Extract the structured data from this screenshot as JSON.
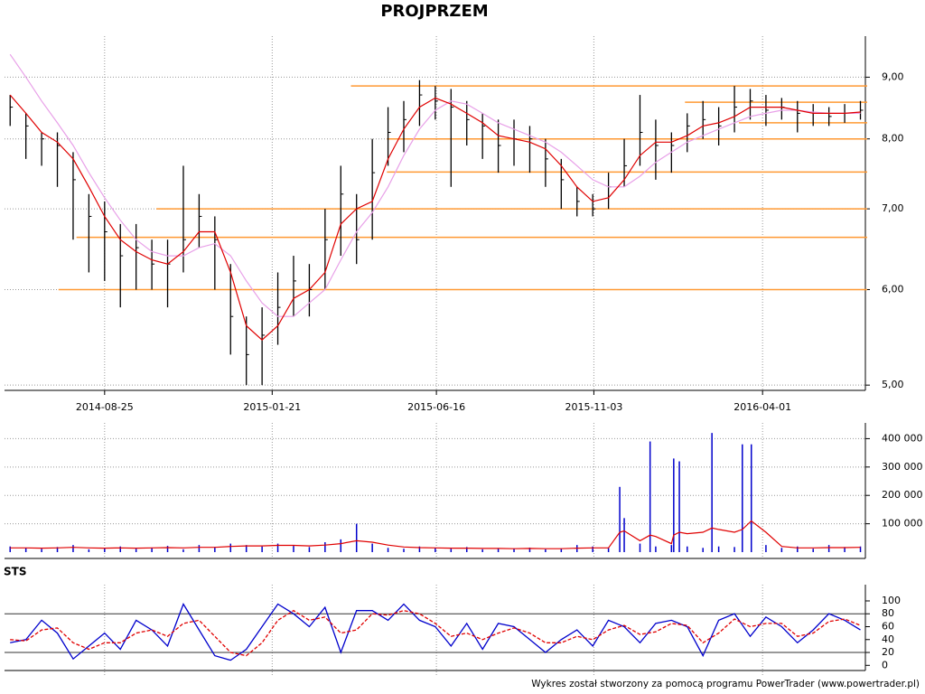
{
  "chart_data": [
    {
      "type": "ohlc",
      "title": "PROJPRZEM",
      "log": true,
      "grid": true,
      "color": "#000000",
      "xlim": [
        "2014-05-28",
        "2016-06-29"
      ],
      "xticks": [
        "2014-08-25",
        "2015-01-21",
        "2015-06-16",
        "2015-11-03",
        "2016-04-01"
      ],
      "ylim": [
        4.95,
        9.6
      ],
      "yticks": [
        {
          "value": 5,
          "label": "5,00"
        },
        {
          "value": 6,
          "label": "6,00"
        },
        {
          "value": 7,
          "label": "7,00"
        },
        {
          "value": 8,
          "label": "8,00"
        },
        {
          "value": 9,
          "label": "9,00"
        }
      ],
      "x": [
        "2014-06-02",
        "2014-06-16",
        "2014-06-30",
        "2014-07-14",
        "2014-07-28",
        "2014-08-11",
        "2014-08-25",
        "2014-09-08",
        "2014-09-22",
        "2014-10-06",
        "2014-10-20",
        "2014-11-03",
        "2014-11-17",
        "2014-12-01",
        "2014-12-15",
        "2014-12-29",
        "2015-01-12",
        "2015-01-26",
        "2015-02-09",
        "2015-02-23",
        "2015-03-09",
        "2015-03-23",
        "2015-04-06",
        "2015-04-20",
        "2015-05-04",
        "2015-05-18",
        "2015-06-01",
        "2015-06-15",
        "2015-06-29",
        "2015-07-13",
        "2015-07-27",
        "2015-08-10",
        "2015-08-24",
        "2015-09-07",
        "2015-09-21",
        "2015-10-05",
        "2015-10-19",
        "2015-11-02",
        "2015-11-16",
        "2015-11-30",
        "2015-12-14",
        "2015-12-28",
        "2016-01-11",
        "2016-01-25",
        "2016-02-08",
        "2016-02-22",
        "2016-03-07",
        "2016-03-21",
        "2016-04-04",
        "2016-04-18",
        "2016-05-02",
        "2016-05-16",
        "2016-05-30",
        "2016-06-13",
        "2016-06-27"
      ],
      "high": [
        8.7,
        8.4,
        8.1,
        8.1,
        7.8,
        7.2,
        7.1,
        6.8,
        6.8,
        6.6,
        6.6,
        7.6,
        7.2,
        6.9,
        6.3,
        5.7,
        5.8,
        6.2,
        6.4,
        6.3,
        7.0,
        7.6,
        7.2,
        8.0,
        8.5,
        8.6,
        8.95,
        8.85,
        8.8,
        8.6,
        8.4,
        8.3,
        8.3,
        8.2,
        8.0,
        7.7,
        7.3,
        7.2,
        7.5,
        8.0,
        8.7,
        8.3,
        8.1,
        8.4,
        8.6,
        8.5,
        8.85,
        8.8,
        8.7,
        8.65,
        8.6,
        8.55,
        8.5,
        8.55,
        8.6
      ],
      "low": [
        8.2,
        7.7,
        7.6,
        7.3,
        6.6,
        6.2,
        6.1,
        5.8,
        6.0,
        6.0,
        5.8,
        6.2,
        6.5,
        6.0,
        5.3,
        5.0,
        5.0,
        5.4,
        5.7,
        5.7,
        6.0,
        6.4,
        6.3,
        6.6,
        7.6,
        7.8,
        8.2,
        8.3,
        7.3,
        7.9,
        7.7,
        7.5,
        7.6,
        7.5,
        7.3,
        7.0,
        6.9,
        6.9,
        7.0,
        7.3,
        7.6,
        7.4,
        7.5,
        7.8,
        8.0,
        7.9,
        8.1,
        8.3,
        8.2,
        8.3,
        8.1,
        8.2,
        8.2,
        8.25,
        8.3
      ],
      "close": [
        8.5,
        8.2,
        8.0,
        7.9,
        7.4,
        6.9,
        6.7,
        6.4,
        6.5,
        6.3,
        6.3,
        6.6,
        6.9,
        6.6,
        5.7,
        5.3,
        5.5,
        5.8,
        6.1,
        6.0,
        6.6,
        7.2,
        6.6,
        7.5,
        8.1,
        8.3,
        8.7,
        8.6,
        8.5,
        8.3,
        8.2,
        7.9,
        8.0,
        8.0,
        7.7,
        7.4,
        7.1,
        7.0,
        7.3,
        7.6,
        8.1,
        7.9,
        7.9,
        8.2,
        8.3,
        8.2,
        8.5,
        8.6,
        8.45,
        8.5,
        8.4,
        8.4,
        8.35,
        8.4,
        8.45
      ],
      "overlays": [
        {
          "color": "#e8a0e8",
          "values": [
            9.4,
            9.0,
            8.6,
            8.25,
            7.9,
            7.5,
            7.15,
            6.85,
            6.6,
            6.45,
            6.4,
            6.4,
            6.5,
            6.55,
            6.4,
            6.1,
            5.85,
            5.7,
            5.7,
            5.85,
            6.0,
            6.35,
            6.7,
            6.95,
            7.3,
            7.75,
            8.15,
            8.45,
            8.6,
            8.55,
            8.4,
            8.25,
            8.15,
            8.05,
            7.95,
            7.8,
            7.6,
            7.4,
            7.3,
            7.3,
            7.45,
            7.65,
            7.8,
            7.95,
            8.05,
            8.15,
            8.25,
            8.35,
            8.4,
            8.45,
            8.45,
            8.42,
            8.4,
            8.4,
            8.4
          ]
        },
        {
          "color": "#e00000",
          "values": [
            8.7,
            8.4,
            8.1,
            7.95,
            7.7,
            7.3,
            6.9,
            6.6,
            6.45,
            6.35,
            6.3,
            6.45,
            6.7,
            6.7,
            6.2,
            5.6,
            5.45,
            5.6,
            5.9,
            6.0,
            6.2,
            6.8,
            7.0,
            7.1,
            7.7,
            8.15,
            8.5,
            8.65,
            8.55,
            8.4,
            8.25,
            8.05,
            8.0,
            7.95,
            7.85,
            7.6,
            7.3,
            7.1,
            7.15,
            7.4,
            7.75,
            7.95,
            7.95,
            8.05,
            8.2,
            8.25,
            8.35,
            8.5,
            8.5,
            8.5,
            8.45,
            8.4,
            8.4,
            8.4,
            8.42
          ]
        }
      ],
      "levels_color": "#ff9933",
      "levels": [
        {
          "value": 8.85,
          "from": "2015-04-01"
        },
        {
          "value": 8.58,
          "from": "2016-01-23"
        },
        {
          "value": 8.25,
          "from": "2016-03-11"
        },
        {
          "value": 8.0,
          "from": "2015-05-03"
        },
        {
          "value": 7.51,
          "from": "2015-05-03"
        },
        {
          "value": 7.0,
          "from": "2014-10-10"
        },
        {
          "value": 6.63,
          "from": "2014-07-31"
        },
        {
          "value": 6.0,
          "from": "2014-07-15"
        }
      ]
    },
    {
      "type": "bar",
      "color": "#0000cc",
      "grid": true,
      "xlim": [
        "2014-05-28",
        "2016-06-29"
      ],
      "ylim": [
        0,
        430000
      ],
      "yticks": [
        {
          "value": 100000,
          "label": "100 000"
        },
        {
          "value": 200000,
          "label": "200 000"
        },
        {
          "value": 300000,
          "label": "300 000"
        },
        {
          "value": 400000,
          "label": "400 000"
        }
      ],
      "x": [
        "2014-06-02",
        "2014-06-16",
        "2014-06-30",
        "2014-07-14",
        "2014-07-28",
        "2014-08-11",
        "2014-08-25",
        "2014-09-08",
        "2014-09-22",
        "2014-10-06",
        "2014-10-20",
        "2014-11-03",
        "2014-11-17",
        "2014-12-01",
        "2014-12-15",
        "2014-12-29",
        "2015-01-12",
        "2015-01-26",
        "2015-02-09",
        "2015-02-23",
        "2015-03-09",
        "2015-03-23",
        "2015-04-06",
        "2015-04-20",
        "2015-05-04",
        "2015-05-18",
        "2015-06-01",
        "2015-06-15",
        "2015-06-29",
        "2015-07-13",
        "2015-07-27",
        "2015-08-10",
        "2015-08-24",
        "2015-09-07",
        "2015-09-21",
        "2015-10-05",
        "2015-10-19",
        "2015-11-02",
        "2015-11-16",
        "2015-11-26",
        "2015-11-30",
        "2015-12-14",
        "2015-12-23",
        "2015-12-28",
        "2016-01-11",
        "2016-01-13",
        "2016-01-18",
        "2016-01-25",
        "2016-02-08",
        "2016-02-16",
        "2016-02-22",
        "2016-03-07",
        "2016-03-14",
        "2016-03-22",
        "2016-04-04",
        "2016-04-18",
        "2016-05-02",
        "2016-05-16",
        "2016-05-30",
        "2016-06-13",
        "2016-06-27"
      ],
      "values": [
        20000,
        15000,
        12000,
        18000,
        25000,
        10000,
        14000,
        20000,
        12000,
        16000,
        22000,
        10000,
        25000,
        18000,
        30000,
        25000,
        20000,
        30000,
        22000,
        18000,
        35000,
        45000,
        100000,
        30000,
        15000,
        12000,
        20000,
        15000,
        12000,
        18000,
        10000,
        14000,
        12000,
        16000,
        10000,
        12000,
        25000,
        20000,
        15000,
        230000,
        120000,
        30000,
        390000,
        20000,
        25000,
        330000,
        320000,
        20000,
        15000,
        420000,
        20000,
        18000,
        380000,
        380000,
        25000,
        15000,
        20000,
        12000,
        25000,
        18000,
        20000
      ],
      "overlays": [
        {
          "color": "#e00000",
          "values": [
            15000,
            15000,
            14000,
            15000,
            17000,
            15000,
            14000,
            15000,
            14000,
            15000,
            16000,
            15000,
            17000,
            17000,
            20000,
            22000,
            22000,
            24000,
            24000,
            22000,
            25000,
            30000,
            40000,
            35000,
            25000,
            18000,
            16000,
            15000,
            14000,
            14000,
            13000,
            13000,
            12000,
            13000,
            12000,
            12000,
            14000,
            15000,
            15000,
            70000,
            75000,
            40000,
            60000,
            55000,
            30000,
            60000,
            70000,
            65000,
            70000,
            85000,
            80000,
            70000,
            80000,
            110000,
            70000,
            20000,
            15000,
            15000,
            16000,
            16000,
            17000
          ]
        }
      ]
    },
    {
      "type": "line",
      "title": "STS",
      "xlim": [
        "2014-05-28",
        "2016-06-29"
      ],
      "ylim": [
        -8,
        114
      ],
      "yticks": [
        0,
        20,
        40,
        60,
        80,
        100
      ],
      "levels_color": "#333333",
      "levels": [
        20,
        80
      ],
      "x": [
        "2014-06-02",
        "2014-06-16",
        "2014-06-30",
        "2014-07-14",
        "2014-07-28",
        "2014-08-11",
        "2014-08-25",
        "2014-09-08",
        "2014-09-22",
        "2014-10-06",
        "2014-10-20",
        "2014-11-03",
        "2014-11-17",
        "2014-12-01",
        "2014-12-15",
        "2014-12-29",
        "2015-01-12",
        "2015-01-26",
        "2015-02-09",
        "2015-02-23",
        "2015-03-09",
        "2015-03-23",
        "2015-04-06",
        "2015-04-20",
        "2015-05-04",
        "2015-05-18",
        "2015-06-01",
        "2015-06-15",
        "2015-06-29",
        "2015-07-13",
        "2015-07-27",
        "2015-08-10",
        "2015-08-24",
        "2015-09-07",
        "2015-09-21",
        "2015-10-05",
        "2015-10-19",
        "2015-11-02",
        "2015-11-16",
        "2015-11-30",
        "2015-12-14",
        "2015-12-28",
        "2016-01-11",
        "2016-01-25",
        "2016-02-08",
        "2016-02-22",
        "2016-03-07",
        "2016-03-21",
        "2016-04-04",
        "2016-04-18",
        "2016-05-02",
        "2016-05-16",
        "2016-05-30",
        "2016-06-13",
        "2016-06-27"
      ],
      "series": [
        {
          "color": "#0000cc",
          "values": [
            35,
            40,
            70,
            50,
            10,
            30,
            50,
            25,
            70,
            55,
            30,
            95,
            55,
            15,
            8,
            25,
            60,
            95,
            80,
            60,
            90,
            20,
            85,
            85,
            70,
            95,
            70,
            60,
            30,
            65,
            25,
            65,
            60,
            40,
            20,
            40,
            55,
            30,
            70,
            60,
            35,
            65,
            70,
            60,
            15,
            70,
            80,
            45,
            75,
            60,
            35,
            55,
            80,
            70,
            55
          ]
        },
        {
          "color": "#e00000",
          "dash": true,
          "values": [
            40,
            38,
            55,
            58,
            35,
            25,
            35,
            35,
            50,
            55,
            45,
            65,
            70,
            45,
            20,
            15,
            35,
            70,
            85,
            70,
            75,
            50,
            55,
            80,
            78,
            85,
            80,
            65,
            45,
            50,
            40,
            50,
            58,
            50,
            35,
            35,
            45,
            40,
            55,
            62,
            48,
            52,
            65,
            62,
            35,
            50,
            72,
            60,
            65,
            65,
            45,
            50,
            68,
            72,
            62
          ]
        }
      ]
    }
  ],
  "footer": "Wykres został stworzony za pomocą programu PowerTrader (www.powertrader.pl)"
}
